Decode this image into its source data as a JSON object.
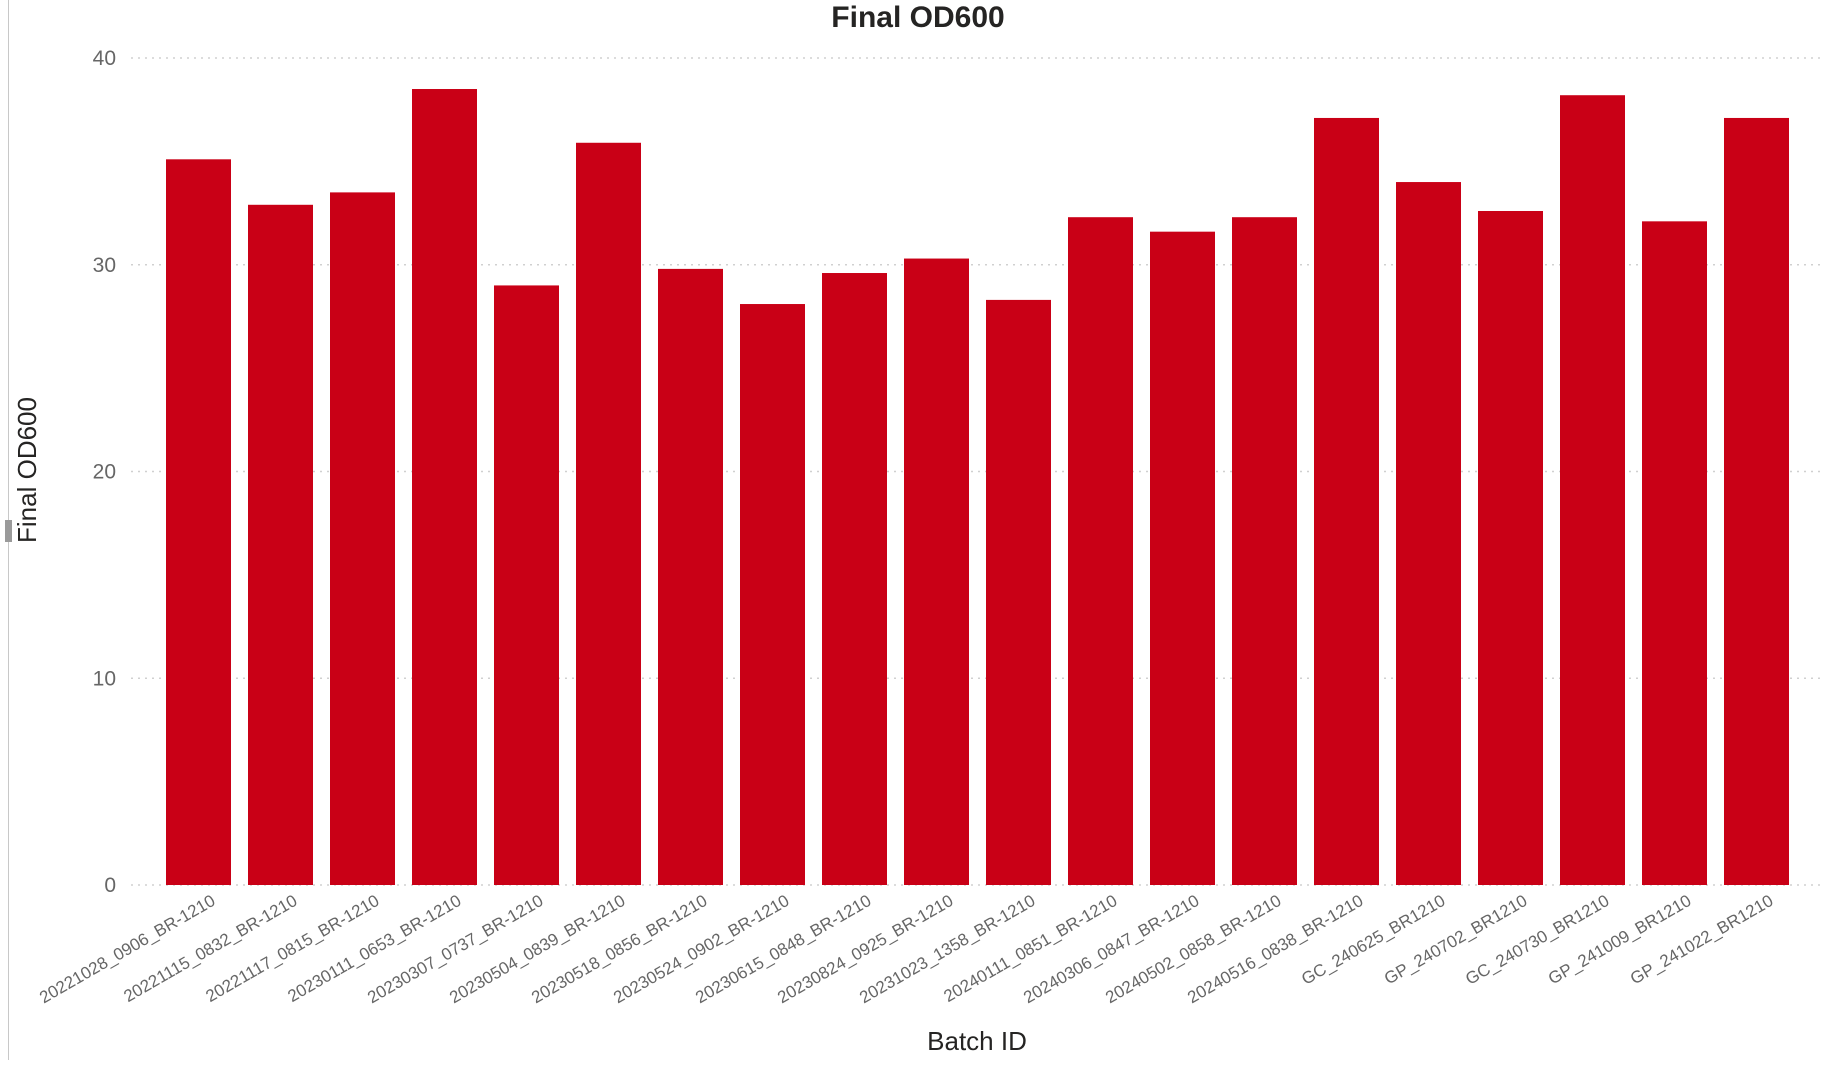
{
  "chart_data": {
    "type": "bar",
    "title": "Final OD600",
    "xlabel": "Batch ID",
    "ylabel": "Final OD600",
    "ylim": [
      0,
      40
    ],
    "yticks": [
      0,
      10,
      20,
      30,
      40
    ],
    "grid": "horizontal dotted",
    "colors": {
      "bar": "#C90016",
      "grid": "#d0d0d0",
      "tick_text": "#666666",
      "title_text": "#252423"
    },
    "categories": [
      "20221028_0906_BR-1210",
      "20221115_0832_BR-1210",
      "20221117_0815_BR-1210",
      "20230111_0653_BR-1210",
      "20230307_0737_BR-1210",
      "20230504_0839_BR-1210",
      "20230518_0856_BR-1210",
      "20230524_0902_BR-1210",
      "20230615_0848_BR-1210",
      "20230824_0925_BR-1210",
      "20231023_1358_BR-1210",
      "20240111_0851_BR-1210",
      "20240306_0847_BR-1210",
      "20240502_0858_BR-1210",
      "20240516_0838_BR-1210",
      "GC_240625_BR1210",
      "GP_240702_BR1210",
      "GC_240730_BR1210",
      "GP_241009_BR1210",
      "GP_241022_BR1210"
    ],
    "values": [
      35.1,
      32.9,
      33.5,
      38.5,
      29.0,
      35.9,
      29.8,
      28.1,
      29.6,
      30.3,
      28.3,
      32.3,
      31.6,
      32.3,
      37.1,
      34.0,
      32.6,
      38.2,
      32.1,
      37.1
    ]
  }
}
